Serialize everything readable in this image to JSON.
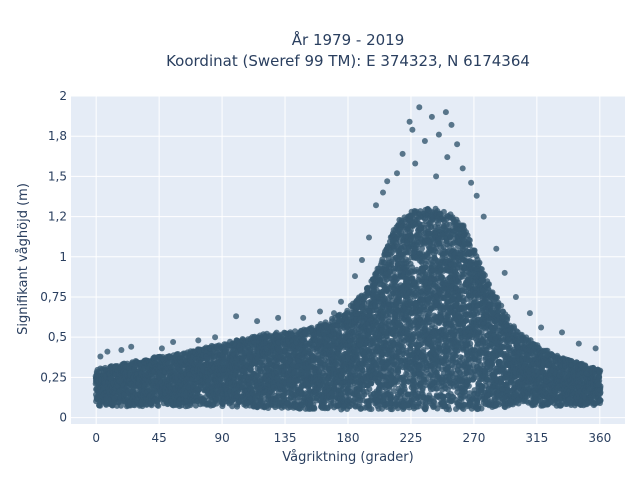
{
  "chart_data": {
    "type": "scatter",
    "title": "År 1979 - 2019",
    "subtitle": "Koordinat (Sweref 99 TM): E 374323, N 6174364",
    "xlabel": "Vågriktning (grader)",
    "ylabel": "Signifikant våghöjd (m)",
    "xlim": [
      -18,
      378
    ],
    "ylim": [
      -0.04,
      2.0
    ],
    "x_ticks": [
      0,
      45,
      90,
      135,
      180,
      225,
      270,
      315,
      360
    ],
    "x_tick_labels": [
      "0",
      "45",
      "90",
      "135",
      "180",
      "225",
      "270",
      "315",
      "360"
    ],
    "y_ticks": [
      0,
      0.25,
      0.5,
      0.75,
      1,
      1.25,
      1.5,
      1.75,
      2
    ],
    "y_tick_labels": [
      "0",
      "0,25",
      "0,5",
      "0,75",
      "1",
      "1,2",
      "1,5",
      "1,8",
      "2"
    ],
    "grid": true,
    "legend": "none",
    "marker_color": "#34586f",
    "envelope": {
      "x": [
        0,
        20,
        45,
        60,
        90,
        120,
        150,
        165,
        180,
        195,
        205,
        215,
        225,
        235,
        245,
        255,
        262,
        270,
        280,
        290,
        300,
        315,
        330,
        345,
        360
      ],
      "lower": [
        0.07,
        0.07,
        0.07,
        0.07,
        0.07,
        0.06,
        0.05,
        0.05,
        0.05,
        0.05,
        0.05,
        0.05,
        0.05,
        0.05,
        0.05,
        0.05,
        0.05,
        0.05,
        0.06,
        0.06,
        0.07,
        0.07,
        0.07,
        0.07,
        0.08
      ],
      "upper": [
        0.3,
        0.34,
        0.38,
        0.4,
        0.46,
        0.52,
        0.55,
        0.6,
        0.68,
        0.82,
        1.0,
        1.22,
        1.28,
        1.3,
        1.3,
        1.26,
        1.2,
        1.05,
        0.85,
        0.68,
        0.55,
        0.45,
        0.38,
        0.34,
        0.3
      ]
    },
    "outliers": [
      {
        "x": 231,
        "y": 1.93
      },
      {
        "x": 250,
        "y": 1.9
      },
      {
        "x": 240,
        "y": 1.87
      },
      {
        "x": 224,
        "y": 1.84
      },
      {
        "x": 254,
        "y": 1.82
      },
      {
        "x": 226,
        "y": 1.79
      },
      {
        "x": 245,
        "y": 1.76
      },
      {
        "x": 235,
        "y": 1.72
      },
      {
        "x": 258,
        "y": 1.7
      },
      {
        "x": 219,
        "y": 1.64
      },
      {
        "x": 251,
        "y": 1.62
      },
      {
        "x": 228,
        "y": 1.58
      },
      {
        "x": 262,
        "y": 1.55
      },
      {
        "x": 215,
        "y": 1.52
      },
      {
        "x": 243,
        "y": 1.5
      },
      {
        "x": 268,
        "y": 1.46
      },
      {
        "x": 208,
        "y": 1.47
      },
      {
        "x": 272,
        "y": 1.38
      },
      {
        "x": 205,
        "y": 1.4
      },
      {
        "x": 277,
        "y": 1.25
      },
      {
        "x": 200,
        "y": 1.32
      },
      {
        "x": 286,
        "y": 1.05
      },
      {
        "x": 195,
        "y": 1.12
      },
      {
        "x": 292,
        "y": 0.9
      },
      {
        "x": 190,
        "y": 0.98
      },
      {
        "x": 300,
        "y": 0.75
      },
      {
        "x": 185,
        "y": 0.88
      },
      {
        "x": 310,
        "y": 0.65
      },
      {
        "x": 318,
        "y": 0.56
      },
      {
        "x": 333,
        "y": 0.53
      },
      {
        "x": 345,
        "y": 0.46
      },
      {
        "x": 357,
        "y": 0.43
      },
      {
        "x": 175,
        "y": 0.72
      },
      {
        "x": 170,
        "y": 0.65
      },
      {
        "x": 160,
        "y": 0.66
      },
      {
        "x": 148,
        "y": 0.62
      },
      {
        "x": 130,
        "y": 0.62
      },
      {
        "x": 115,
        "y": 0.6
      },
      {
        "x": 100,
        "y": 0.63
      },
      {
        "x": 85,
        "y": 0.5
      },
      {
        "x": 73,
        "y": 0.48
      },
      {
        "x": 55,
        "y": 0.47
      },
      {
        "x": 47,
        "y": 0.43
      },
      {
        "x": 25,
        "y": 0.44
      },
      {
        "x": 18,
        "y": 0.42
      },
      {
        "x": 8,
        "y": 0.41
      },
      {
        "x": 3,
        "y": 0.38
      }
    ]
  }
}
